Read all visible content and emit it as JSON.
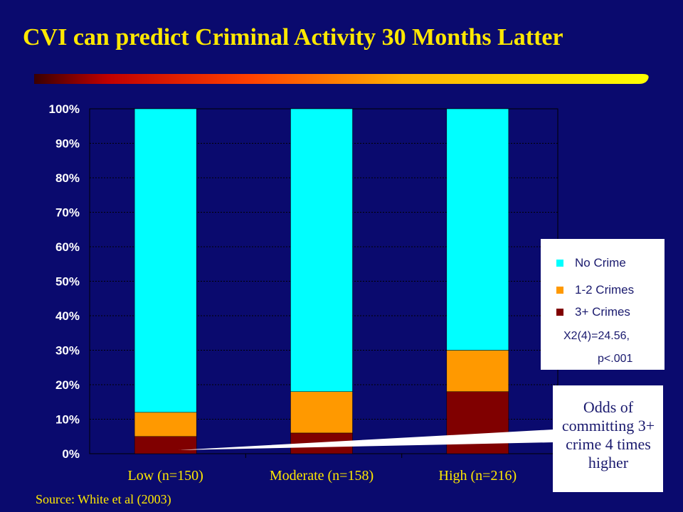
{
  "title": "CVI can predict Criminal Activity 30 Months Latter",
  "source": "Source: White et al (2003)",
  "callout": "Odds of committing 3+ crime 4 times higher",
  "stats": {
    "line1": "X2(4)=24.56,",
    "line2": "p<.001"
  },
  "colors": {
    "background": "#0a0a6e",
    "title": "#ffe800",
    "no_crime": "#00ffff",
    "one_two": "#ff9900",
    "three_plus": "#800000"
  },
  "chart_data": {
    "type": "bar",
    "stacked": true,
    "categories": [
      "Low (n=150)",
      "Moderate (n=158)",
      "High (n=216)"
    ],
    "series": [
      {
        "name": "3+ Crimes",
        "values": [
          5,
          6,
          18
        ],
        "color": "#800000"
      },
      {
        "name": "1-2 Crimes",
        "values": [
          7,
          12,
          12
        ],
        "color": "#ff9900"
      },
      {
        "name": "No Crime",
        "values": [
          88,
          82,
          70
        ],
        "color": "#00ffff"
      }
    ],
    "ylim": [
      0,
      100
    ],
    "yticks": [
      "0%",
      "10%",
      "20%",
      "30%",
      "40%",
      "50%",
      "60%",
      "70%",
      "80%",
      "90%",
      "100%"
    ],
    "legend": [
      "No Crime",
      "1-2 Crimes",
      "3+ Crimes"
    ],
    "legend_position": "right",
    "grid": true
  }
}
